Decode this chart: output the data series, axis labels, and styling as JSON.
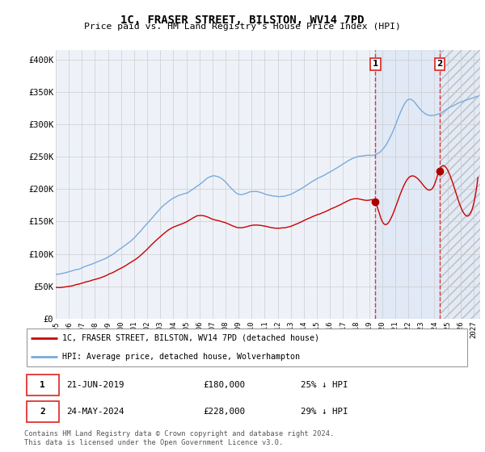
{
  "title": "1C, FRASER STREET, BILSTON, WV14 7PD",
  "subtitle": "Price paid vs. HM Land Registry's House Price Index (HPI)",
  "ylabel_ticks": [
    "£0",
    "£50K",
    "£100K",
    "£150K",
    "£200K",
    "£250K",
    "£300K",
    "£350K",
    "£400K"
  ],
  "ytick_values": [
    0,
    50000,
    100000,
    150000,
    200000,
    250000,
    300000,
    350000,
    400000
  ],
  "ylim": [
    0,
    415000
  ],
  "xlim_start": 1995.0,
  "xlim_end": 2027.5,
  "marker1_x": 2019.47,
  "marker1_y": 180000,
  "marker2_x": 2024.39,
  "marker2_y": 228000,
  "vline1_x": 2019.47,
  "vline2_x": 2024.39,
  "hpi_color": "#7aaadd",
  "price_color": "#cc0000",
  "marker_color": "#aa0000",
  "vline_color": "#dd2222",
  "grid_color": "#cccccc",
  "legend_label_price": "1C, FRASER STREET, BILSTON, WV14 7PD (detached house)",
  "legend_label_hpi": "HPI: Average price, detached house, Wolverhampton",
  "note1_label": "1",
  "note1_date": "21-JUN-2019",
  "note1_price": "£180,000",
  "note1_pct": "25% ↓ HPI",
  "note2_label": "2",
  "note2_date": "24-MAY-2024",
  "note2_price": "£228,000",
  "note2_pct": "29% ↓ HPI",
  "footer": "Contains HM Land Registry data © Crown copyright and database right 2024.\nThis data is licensed under the Open Government Licence v3.0."
}
